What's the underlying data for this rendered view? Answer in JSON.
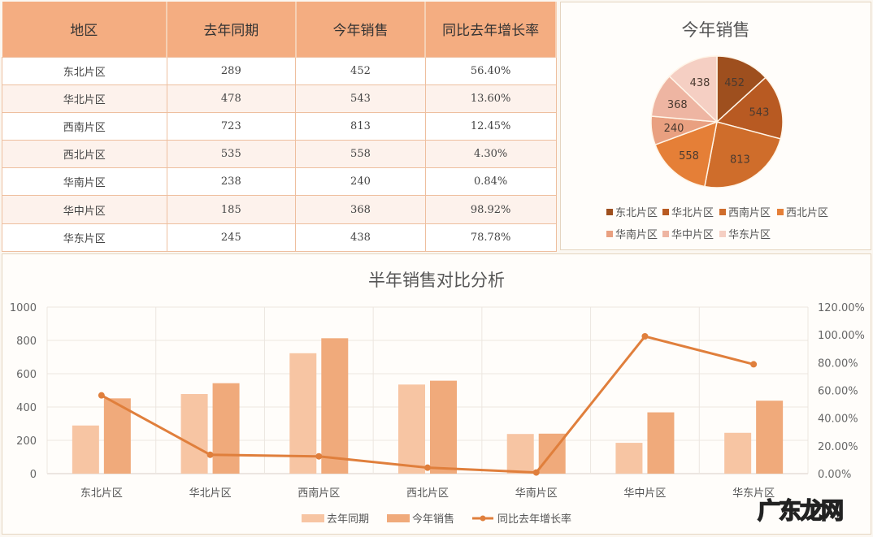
{
  "table": {
    "headers": [
      "地区",
      "去年同期",
      "今年销售",
      "同比去年增长率"
    ],
    "rows": [
      [
        "东北片区",
        "289",
        "452",
        "56.40%"
      ],
      [
        "华北片区",
        "478",
        "543",
        "13.60%"
      ],
      [
        "西南片区",
        "723",
        "813",
        "12.45%"
      ],
      [
        "西北片区",
        "535",
        "558",
        "4.30%"
      ],
      [
        "华南片区",
        "238",
        "240",
        "0.84%"
      ],
      [
        "华中片区",
        "185",
        "368",
        "98.92%"
      ],
      [
        "华东片区",
        "245",
        "438",
        "78.78%"
      ]
    ]
  },
  "chart_data": [
    {
      "type": "pie",
      "title": "今年销售",
      "categories": [
        "东北片区",
        "华北片区",
        "西南片区",
        "西北片区",
        "华南片区",
        "华中片区",
        "华东片区"
      ],
      "values": [
        452,
        543,
        813,
        558,
        240,
        368,
        438
      ],
      "colors": [
        "#9e4f1e",
        "#b85a22",
        "#cf6d2b",
        "#e57f37",
        "#e9a080",
        "#eeb5a2",
        "#f5cfc3"
      ],
      "legend": "bottom"
    },
    {
      "type": "bar+line",
      "title": "半年销售对比分析",
      "categories": [
        "东北片区",
        "华北片区",
        "西南片区",
        "西北片区",
        "华南片区",
        "华中片区",
        "华东片区"
      ],
      "series": [
        {
          "name": "去年同期",
          "type": "bar",
          "values": [
            289,
            478,
            723,
            535,
            238,
            185,
            245
          ],
          "color": "#f7c5a3"
        },
        {
          "name": "今年销售",
          "type": "bar",
          "values": [
            452,
            543,
            813,
            558,
            240,
            368,
            438
          ],
          "color": "#f0aa7b"
        },
        {
          "name": "同比去年增长率",
          "type": "line",
          "axis": "right",
          "values": [
            56.4,
            13.6,
            12.45,
            4.3,
            0.84,
            98.92,
            78.78
          ],
          "color": "#e07f3c"
        }
      ],
      "ylim": [
        0,
        1000
      ],
      "yticks": [
        "0",
        "200",
        "400",
        "600",
        "800",
        "1000"
      ],
      "y2lim": [
        0,
        120
      ],
      "y2ticks": [
        "0.00%",
        "20.00%",
        "40.00%",
        "60.00%",
        "80.00%",
        "100.00%",
        "120.00%"
      ],
      "grid": true,
      "legend": "bottom"
    }
  ],
  "watermark": "广东龙网"
}
